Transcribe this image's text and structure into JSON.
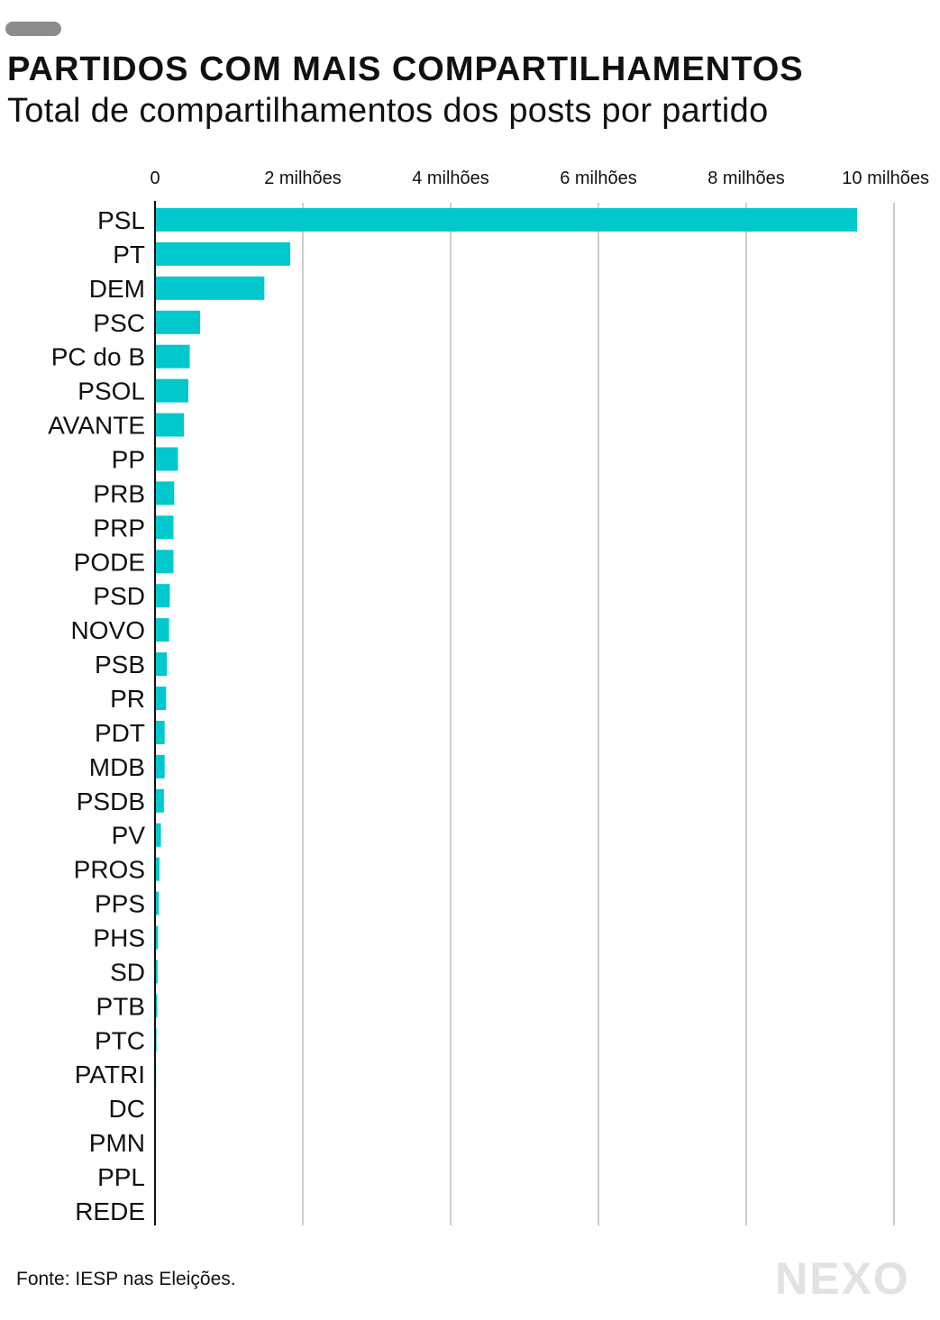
{
  "header": {
    "title": "PARTIDOS COM MAIS COMPARTILHAMENTOS",
    "subtitle": "Total de compartilhamentos dos posts por partido"
  },
  "footer": {
    "source": "Fonte: IESP nas Eleições.",
    "logo": "NEXO"
  },
  "colors": {
    "bar": "#00c8cc",
    "grid": "#bbbbbb",
    "axis": "#111111"
  },
  "chart_data": {
    "type": "bar",
    "orientation": "horizontal",
    "title": "PARTIDOS COM MAIS COMPARTILHAMENTOS",
    "subtitle": "Total de compartilhamentos dos posts por partido",
    "xlim": [
      0,
      10000000
    ],
    "xticks": [
      0,
      2000000,
      4000000,
      6000000,
      8000000,
      10000000
    ],
    "xtick_labels": [
      "0",
      "2 milhões",
      "4 milhões",
      "6 milhões",
      "8 milhões",
      "10 milhões"
    ],
    "x_axis_position": "top",
    "grid": true,
    "categories": [
      "PSL",
      "PT",
      "DEM",
      "PSC",
      "PC do B",
      "PSOL",
      "AVANTE",
      "PP",
      "PRB",
      "PRP",
      "PODE",
      "PSD",
      "NOVO",
      "PSB",
      "PR",
      "PDT",
      "MDB",
      "PSDB",
      "PV",
      "PROS",
      "PPS",
      "PHS",
      "SD",
      "PTB",
      "PTC",
      "PATRI",
      "DC",
      "PMN",
      "PPL",
      "REDE"
    ],
    "values": [
      9500000,
      1830000,
      1480000,
      610000,
      470000,
      450000,
      390000,
      310000,
      260000,
      250000,
      250000,
      200000,
      190000,
      160000,
      150000,
      130000,
      130000,
      120000,
      80000,
      60000,
      50000,
      40000,
      35000,
      30000,
      20000,
      15000,
      10000,
      8000,
      6000,
      4000
    ]
  }
}
